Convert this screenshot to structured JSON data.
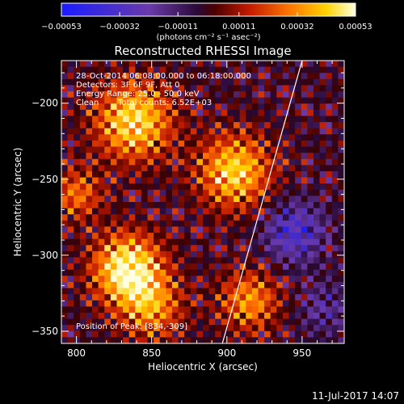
{
  "colorbar": {
    "ticks": [
      "-0.00053",
      "-0.00032",
      "-0.00011",
      "0.00011",
      "0.00032",
      "0.00053"
    ],
    "min": -0.00053,
    "max": 0.00053,
    "unit_label": "(photons cm⁻² s⁻¹ asec⁻²)"
  },
  "annotations": {
    "line1": "28-Oct-2014 06:08:00.000 to 06:18:00.000",
    "line2": "Detectors: 3F 6F 9F, Att 0",
    "line3": "Energy Range: 25.0 - 50.0 keV",
    "line4_a": "Clean",
    "line4_b": "Total counts: 6.52E+03",
    "peak": "Position of Peak: [834,-309]"
  },
  "footer": {
    "timestamp": "11-Jul-2017 14:07"
  },
  "colors": {
    "background": "#000000",
    "frame": "#ffffff",
    "limb_line": "#ffffff"
  },
  "chart_data": {
    "type": "heatmap",
    "title": "Reconstructed RHESSI Image",
    "xlabel": "Heliocentric X (arcsec)",
    "ylabel": "Heliocentric Y (arcsec)",
    "xlim": [
      790,
      978
    ],
    "ylim": [
      -358,
      -172
    ],
    "xticks": [
      800,
      850,
      900,
      950
    ],
    "yticks": [
      -200,
      -250,
      -300,
      -350
    ],
    "xtick_labels": [
      "800",
      "850",
      "900",
      "950"
    ],
    "ytick_labels": [
      "-200",
      "-250",
      "-300",
      "-350"
    ],
    "colormap": "blue-purple-red-yellow-white",
    "value_range": [
      -0.00053,
      0.00053
    ],
    "sources": [
      {
        "x": 834,
        "y": -309,
        "amp": 1.0,
        "sigma": 16
      },
      {
        "x": 838,
        "y": -212,
        "amp": 0.85,
        "sigma": 18
      },
      {
        "x": 905,
        "y": -245,
        "amp": 0.8,
        "sigma": 17
      },
      {
        "x": 915,
        "y": -330,
        "amp": 0.6,
        "sigma": 14
      },
      {
        "x": 850,
        "y": -335,
        "amp": 0.55,
        "sigma": 15
      },
      {
        "x": 800,
        "y": -260,
        "amp": 0.5,
        "sigma": 12
      },
      {
        "x": 945,
        "y": -285,
        "amp": -0.55,
        "sigma": 14
      },
      {
        "x": 965,
        "y": -335,
        "amp": -0.3,
        "sigma": 12
      }
    ],
    "limb_line": {
      "x": [
        897,
        950
      ],
      "y": [
        -358,
        -172
      ]
    },
    "peak": {
      "x": 834,
      "y": -309
    }
  }
}
